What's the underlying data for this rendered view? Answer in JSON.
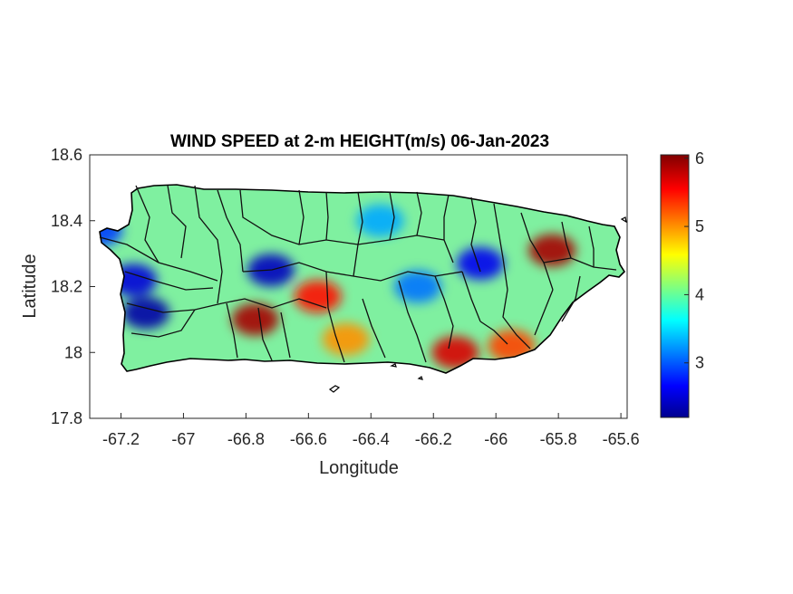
{
  "figure": {
    "title": "WIND SPEED at 2-m HEIGHT(m/s) 06-Jan-2023",
    "xlabel": "Longitude",
    "ylabel": "Latitude",
    "x_ticks": [
      "-67.2",
      "-67",
      "-66.8",
      "-66.6",
      "-66.4",
      "-66.2",
      "-66",
      "-65.8",
      "-65.6"
    ],
    "y_ticks": [
      "18.6",
      "18.4",
      "18.2",
      "18",
      "17.8"
    ]
  },
  "map": {
    "region": "Puerto Rico",
    "xlim": [
      -67.3,
      -65.58
    ],
    "ylim": [
      17.8,
      18.6
    ],
    "variable": "wind speed at 2-m height",
    "units": "m/s",
    "date": "06-Jan-2023",
    "colormap": "jet",
    "clim": [
      2.2,
      6.05
    ],
    "boundaries_color": "#000000",
    "background_color": "#ffffff",
    "hotspots": [
      {
        "lon": -67.12,
        "lat": 18.12,
        "value": 2.3
      },
      {
        "lon": -67.16,
        "lat": 18.22,
        "value": 2.5
      },
      {
        "lon": -67.27,
        "lat": 18.37,
        "value": 2.9
      },
      {
        "lon": -66.72,
        "lat": 18.25,
        "value": 2.4
      },
      {
        "lon": -66.05,
        "lat": 18.27,
        "value": 2.6
      },
      {
        "lon": -66.25,
        "lat": 18.2,
        "value": 3.1
      },
      {
        "lon": -66.37,
        "lat": 18.4,
        "value": 3.3
      },
      {
        "lon": -66.77,
        "lat": 18.1,
        "value": 5.9
      },
      {
        "lon": -66.57,
        "lat": 18.17,
        "value": 5.5
      },
      {
        "lon": -66.13,
        "lat": 18.0,
        "value": 5.7
      },
      {
        "lon": -65.82,
        "lat": 18.31,
        "value": 5.9
      },
      {
        "lon": -65.95,
        "lat": 18.02,
        "value": 5.3
      },
      {
        "lon": -66.48,
        "lat": 18.04,
        "value": 5.0
      }
    ]
  },
  "colorbar": {
    "ticks": [
      "3",
      "4",
      "5",
      "6"
    ],
    "tick_values": [
      3,
      4,
      5,
      6
    ],
    "colors": [
      "#00008f",
      "#0000ff",
      "#00ffff",
      "#ffff00",
      "#ff0000",
      "#800000"
    ]
  }
}
